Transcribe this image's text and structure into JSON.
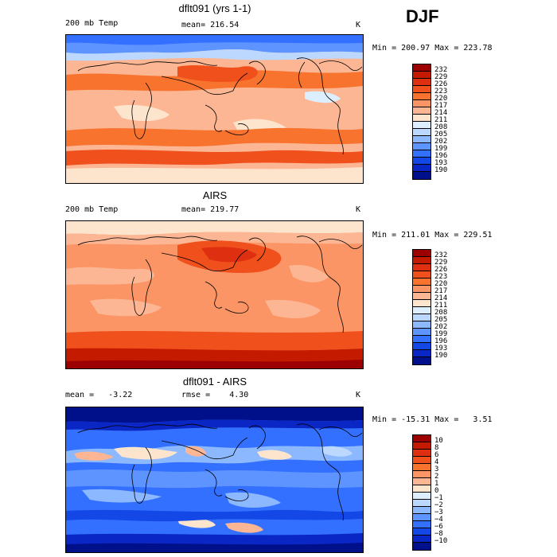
{
  "season": "DJF",
  "units": "K",
  "temp_colors": [
    "#9c0000",
    "#c41a00",
    "#de3010",
    "#f0501c",
    "#f7732e",
    "#fb9565",
    "#fcb694",
    "#fde4cc",
    "#ddeeff",
    "#bcd8ff",
    "#8cb8ff",
    "#5e94ff",
    "#3370ff",
    "#1448e6",
    "#0a26c4",
    "#00108a"
  ],
  "diff_colors": [
    "#9c0000",
    "#c41a00",
    "#de3010",
    "#f0501c",
    "#f7732e",
    "#fb9565",
    "#fcb694",
    "#fde4cc",
    "#ddeeff",
    "#bcd8ff",
    "#8cb8ff",
    "#5e94ff",
    "#3370ff",
    "#1448e6",
    "#0a26c4",
    "#00108a"
  ],
  "panels": [
    {
      "title": "dflt091 (yrs 1-1)",
      "left_label": "200 mb Temp",
      "center_label": "mean= 216.54",
      "right_label": "K",
      "minmax": "Min = 200.97 Max = 223.78",
      "levels": [
        "232",
        "229",
        "226",
        "223",
        "220",
        "217",
        "214",
        "211",
        "208",
        "205",
        "202",
        "199",
        "196",
        "193",
        "190"
      ]
    },
    {
      "title": "AIRS",
      "left_label": "200 mb Temp",
      "center_label": "mean= 219.77",
      "right_label": "K",
      "minmax": "Min = 211.01 Max = 229.51",
      "levels": [
        "232",
        "229",
        "226",
        "223",
        "220",
        "217",
        "214",
        "211",
        "208",
        "205",
        "202",
        "199",
        "196",
        "193",
        "190"
      ]
    },
    {
      "title": "dflt091 - AIRS",
      "left_label": "mean =   -3.22",
      "center_label": "rmse =    4.30",
      "right_label": "K",
      "minmax": "Min = -15.31 Max =   3.51",
      "levels": [
        "10",
        "8",
        "6",
        "4",
        "3",
        "2",
        "1",
        "0",
        "−1",
        "−2",
        "−3",
        "−4",
        "−6",
        "−8",
        "−10"
      ]
    }
  ]
}
